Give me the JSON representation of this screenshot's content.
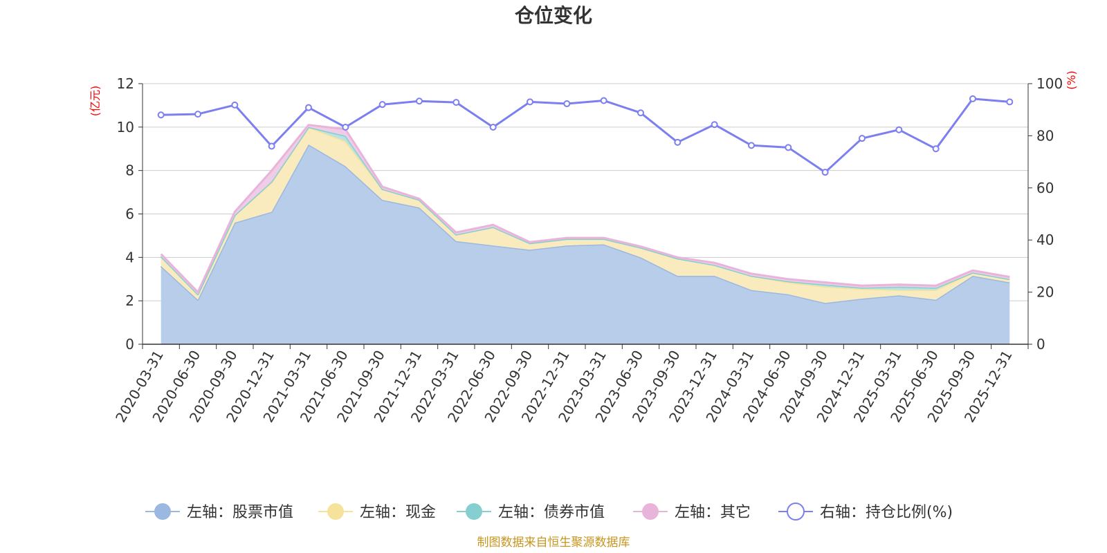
{
  "chart_data": {
    "type": "area",
    "title": "仓位变化",
    "left_axis": {
      "unit_label": "(亿元)",
      "ticks": [
        "0",
        "2",
        "4",
        "6",
        "8",
        "10",
        "12"
      ],
      "range": [
        0,
        12
      ]
    },
    "right_axis": {
      "unit_label": "(%)",
      "ticks": [
        "0",
        "20",
        "40",
        "60",
        "80",
        "100"
      ],
      "range": [
        0,
        100
      ]
    },
    "categories": [
      "2020-03-31",
      "2020-06-30",
      "2020-09-30",
      "2020-12-31",
      "2021-03-31",
      "2021-06-30",
      "2021-09-30",
      "2021-12-31",
      "2022-03-31",
      "2022-06-30",
      "2022-09-30",
      "2022-12-31",
      "2023-03-31",
      "2023-06-30",
      "2023-09-30",
      "2023-12-31",
      "2024-03-31",
      "2024-06-30",
      "2024-09-30",
      "2024-12-31",
      "2025-03-31",
      "2025-06-30",
      "2025-09-30",
      "2025-12-31"
    ],
    "series": [
      {
        "name": "左轴：股票市值",
        "axis": "left",
        "stacked": true,
        "color": "#9ab8e0",
        "fill": "#b8cdea",
        "values": [
          3.6,
          2.05,
          5.6,
          6.1,
          9.2,
          8.2,
          6.65,
          6.3,
          4.75,
          4.55,
          4.35,
          4.55,
          4.6,
          4.0,
          3.15,
          3.15,
          2.5,
          2.3,
          1.9,
          2.1,
          2.25,
          2.05,
          3.15,
          2.85
        ]
      },
      {
        "name": "左轴：现金",
        "axis": "left",
        "stacked": true,
        "color": "#f7e29c",
        "fill": "#f9ebbd",
        "values": [
          0.45,
          0.25,
          0.35,
          1.35,
          0.8,
          1.15,
          0.5,
          0.35,
          0.3,
          0.85,
          0.3,
          0.3,
          0.25,
          0.45,
          0.8,
          0.5,
          0.65,
          0.55,
          0.75,
          0.45,
          0.25,
          0.45,
          0.15,
          0.15
        ]
      },
      {
        "name": "左轴：债券市值",
        "axis": "left",
        "stacked": true,
        "color": "#86cfd1",
        "fill": "#b8e3e4",
        "values": [
          0.0,
          0.0,
          0.0,
          0.05,
          0.0,
          0.25,
          0.0,
          0.0,
          0.0,
          0.0,
          0.0,
          0.0,
          0.0,
          0.0,
          0.0,
          0.0,
          0.0,
          0.05,
          0.1,
          0.05,
          0.15,
          0.1,
          0.0,
          0.0
        ]
      },
      {
        "name": "左轴：其它",
        "axis": "left",
        "stacked": true,
        "color": "#e8b4da",
        "fill": "#f0cde6",
        "values": [
          0.1,
          0.1,
          0.15,
          0.5,
          0.1,
          0.3,
          0.1,
          0.05,
          0.1,
          0.1,
          0.05,
          0.05,
          0.05,
          0.05,
          0.05,
          0.1,
          0.1,
          0.1,
          0.1,
          0.1,
          0.1,
          0.1,
          0.1,
          0.1
        ]
      },
      {
        "name": "右轴：持仓比例(%)",
        "axis": "right",
        "stacked": false,
        "color": "#7b7ff0",
        "values": [
          88.0,
          88.3,
          91.8,
          76.0,
          90.8,
          83.3,
          92.0,
          93.3,
          92.8,
          83.3,
          93.0,
          92.3,
          93.5,
          88.8,
          77.5,
          84.3,
          76.3,
          75.5,
          66.0,
          79.0,
          82.3,
          75.0,
          94.2,
          93.0
        ]
      }
    ]
  },
  "source_note": "制图数据来自恒生聚源数据库"
}
